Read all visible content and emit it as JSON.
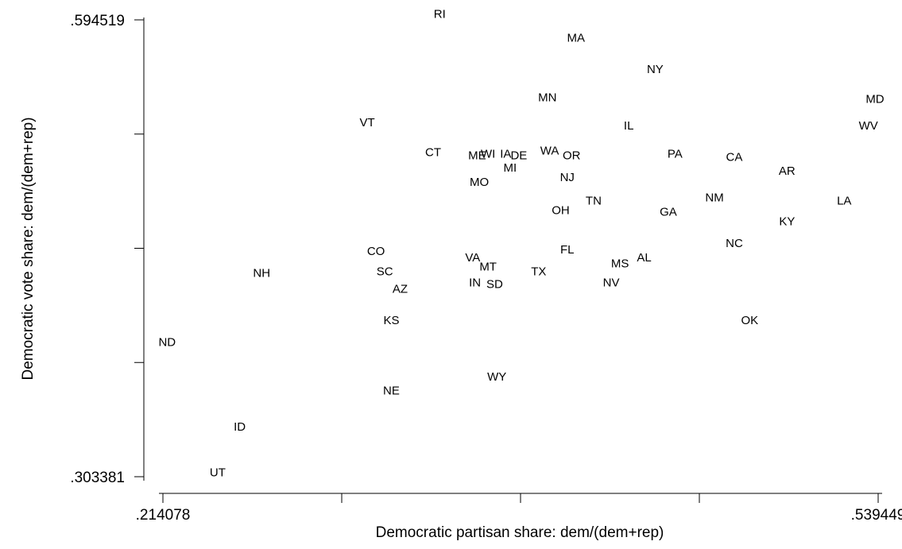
{
  "chart_data": {
    "type": "scatter",
    "xlabel": "Democratic partisan share: dem/(dem+rep)",
    "ylabel": "Democratic vote share: dem/(dem+rep)",
    "xlim": [
      0.214078,
      0.539449
    ],
    "ylim": [
      0.303381,
      0.594519
    ],
    "xticks": [
      {
        "value": 0.214078,
        "label": ".214078"
      },
      {
        "value": 0.295421,
        "label": ""
      },
      {
        "value": 0.376764,
        "label": ""
      },
      {
        "value": 0.458106,
        "label": ""
      },
      {
        "value": 0.539449,
        "label": ".539449"
      }
    ],
    "yticks": [
      {
        "value": 0.303381,
        "label": ".303381"
      },
      {
        "value": 0.376166,
        "label": ""
      },
      {
        "value": 0.44895,
        "label": ""
      },
      {
        "value": 0.521735,
        "label": ""
      },
      {
        "value": 0.594519,
        "label": ".594519"
      }
    ],
    "grid": false,
    "points": [
      {
        "label": "RI",
        "x": 0.34,
        "y": 0.598
      },
      {
        "label": "MA",
        "x": 0.402,
        "y": 0.583
      },
      {
        "label": "NY",
        "x": 0.438,
        "y": 0.563
      },
      {
        "label": "MD",
        "x": 0.538,
        "y": 0.544
      },
      {
        "label": "MN",
        "x": 0.389,
        "y": 0.545
      },
      {
        "label": "VT",
        "x": 0.307,
        "y": 0.529
      },
      {
        "label": "IL",
        "x": 0.426,
        "y": 0.527
      },
      {
        "label": "WV",
        "x": 0.535,
        "y": 0.527
      },
      {
        "label": "CT",
        "x": 0.337,
        "y": 0.51
      },
      {
        "label": "ME",
        "x": 0.357,
        "y": 0.508
      },
      {
        "label": "WI",
        "x": 0.362,
        "y": 0.509
      },
      {
        "label": "IA",
        "x": 0.37,
        "y": 0.509
      },
      {
        "label": "DE",
        "x": 0.376,
        "y": 0.508
      },
      {
        "label": "WA",
        "x": 0.39,
        "y": 0.511
      },
      {
        "label": "OR",
        "x": 0.4,
        "y": 0.508
      },
      {
        "label": "PA",
        "x": 0.447,
        "y": 0.509
      },
      {
        "label": "CA",
        "x": 0.474,
        "y": 0.507
      },
      {
        "label": "MI",
        "x": 0.372,
        "y": 0.5
      },
      {
        "label": "AR",
        "x": 0.498,
        "y": 0.498
      },
      {
        "label": "NJ",
        "x": 0.398,
        "y": 0.494
      },
      {
        "label": "MO",
        "x": 0.358,
        "y": 0.491
      },
      {
        "label": "TN",
        "x": 0.41,
        "y": 0.479
      },
      {
        "label": "NM",
        "x": 0.465,
        "y": 0.481
      },
      {
        "label": "LA",
        "x": 0.524,
        "y": 0.479
      },
      {
        "label": "OH",
        "x": 0.395,
        "y": 0.473
      },
      {
        "label": "GA",
        "x": 0.444,
        "y": 0.472
      },
      {
        "label": "KY",
        "x": 0.498,
        "y": 0.466
      },
      {
        "label": "NC",
        "x": 0.474,
        "y": 0.452
      },
      {
        "label": "FL",
        "x": 0.398,
        "y": 0.448
      },
      {
        "label": "CO",
        "x": 0.311,
        "y": 0.447
      },
      {
        "label": "AL",
        "x": 0.433,
        "y": 0.443
      },
      {
        "label": "VA",
        "x": 0.355,
        "y": 0.443
      },
      {
        "label": "MS",
        "x": 0.422,
        "y": 0.439
      },
      {
        "label": "MT",
        "x": 0.362,
        "y": 0.437
      },
      {
        "label": "SC",
        "x": 0.315,
        "y": 0.434
      },
      {
        "label": "NH",
        "x": 0.259,
        "y": 0.433
      },
      {
        "label": "TX",
        "x": 0.385,
        "y": 0.434
      },
      {
        "label": "IN",
        "x": 0.356,
        "y": 0.427
      },
      {
        "label": "SD",
        "x": 0.365,
        "y": 0.426
      },
      {
        "label": "NV",
        "x": 0.418,
        "y": 0.427
      },
      {
        "label": "AZ",
        "x": 0.322,
        "y": 0.423
      },
      {
        "label": "KS",
        "x": 0.318,
        "y": 0.403
      },
      {
        "label": "OK",
        "x": 0.481,
        "y": 0.403
      },
      {
        "label": "ND",
        "x": 0.216,
        "y": 0.389
      },
      {
        "label": "WY",
        "x": 0.366,
        "y": 0.367
      },
      {
        "label": "NE",
        "x": 0.318,
        "y": 0.358
      },
      {
        "label": "ID",
        "x": 0.249,
        "y": 0.335
      },
      {
        "label": "UT",
        "x": 0.239,
        "y": 0.306
      }
    ]
  }
}
